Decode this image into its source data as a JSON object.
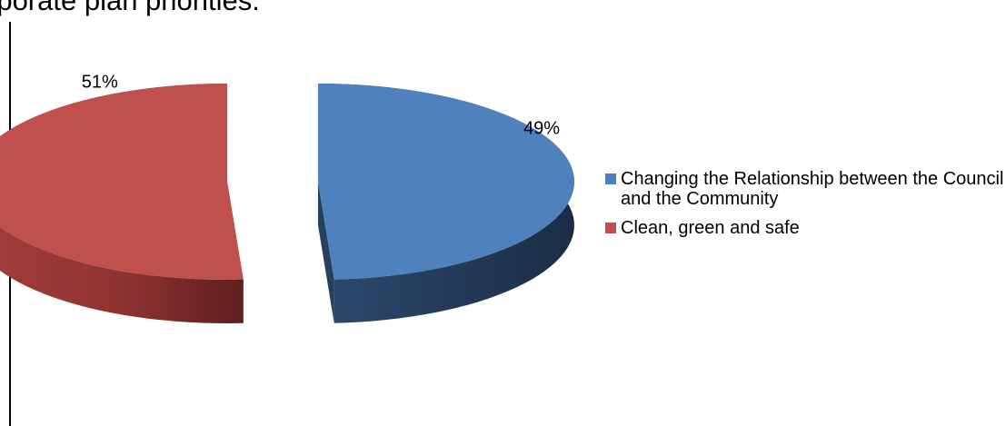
{
  "title_fragment": "rporate plan priorities.",
  "chart_data": {
    "type": "pie",
    "title": "",
    "style": "3d-exploded",
    "legend": "right",
    "slices": [
      {
        "name": "Changing the Relationship between the Council and the Community",
        "value": 49,
        "label": "49%",
        "color": "#4f81bd"
      },
      {
        "name": "Clean, green and safe",
        "value": 51,
        "label": "51%",
        "color": "#c0504d"
      }
    ]
  }
}
